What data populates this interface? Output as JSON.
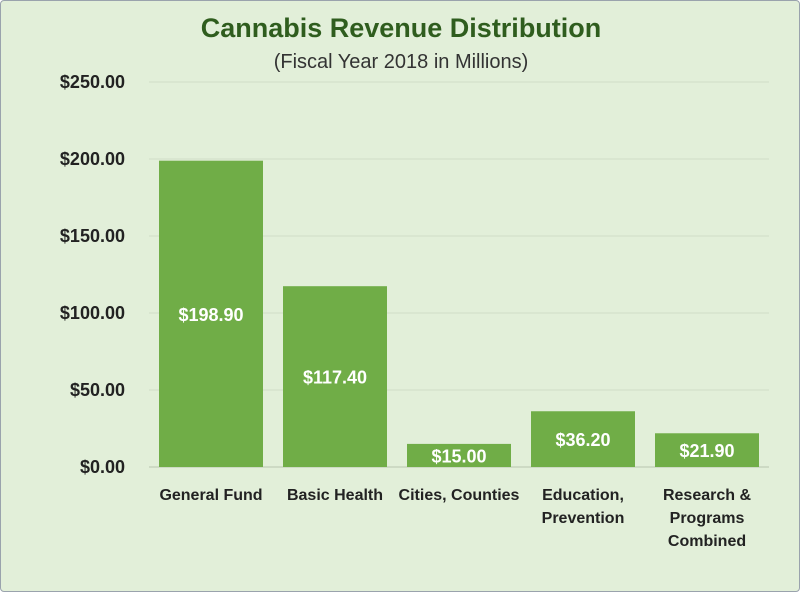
{
  "chart_data": {
    "type": "bar",
    "title": "Cannabis Revenue Distribution",
    "subtitle": "(Fiscal Year 2018 in Millions)",
    "categories": [
      [
        "General Fund"
      ],
      [
        "Basic Health"
      ],
      [
        "Cities, Counties"
      ],
      [
        "Education,",
        "Prevention"
      ],
      [
        "Research  &",
        "Programs",
        "Combined"
      ]
    ],
    "values": [
      198.9,
      117.4,
      15.0,
      36.2,
      21.9
    ],
    "data_labels": [
      "$198.90",
      "$117.40",
      "$15.00",
      "$36.20",
      "$21.90"
    ],
    "y_ticks": [
      "$0.00",
      "$50.00",
      "$100.00",
      "$150.00",
      "$200.00",
      "$250.00"
    ],
    "ylim": [
      0,
      250
    ],
    "grid": true,
    "legend": "none",
    "colors": {
      "bar": "#70ad47",
      "background": "#e2efd9",
      "title": "#2f5d1e",
      "grid": "#d0dcc8"
    }
  }
}
